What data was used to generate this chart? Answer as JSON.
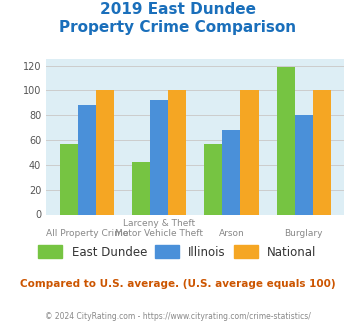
{
  "title_line1": "2019 East Dundee",
  "title_line2": "Property Crime Comparison",
  "title_color": "#1a6fbb",
  "cat_labels_top": [
    "",
    "Larceny & Theft",
    "",
    ""
  ],
  "cat_labels_bottom": [
    "All Property Crime",
    "Motor Vehicle Theft",
    "Arson",
    "Burglary"
  ],
  "east_dundee": [
    57,
    42,
    57,
    119
  ],
  "illinois": [
    88,
    92,
    68,
    80
  ],
  "national": [
    100,
    100,
    100,
    100
  ],
  "bar_colors": {
    "east_dundee": "#76c442",
    "illinois": "#4a90d9",
    "national": "#f5a623"
  },
  "ylim": [
    0,
    125
  ],
  "yticks": [
    0,
    20,
    40,
    60,
    80,
    100,
    120
  ],
  "grid_color": "#cccccc",
  "bg_color": "#ddeef5",
  "note_text": "Compared to U.S. average. (U.S. average equals 100)",
  "note_color": "#cc5500",
  "copyright_text": "© 2024 CityRating.com - https://www.cityrating.com/crime-statistics/",
  "copyright_color": "#888888",
  "legend_labels": [
    "East Dundee",
    "Illinois",
    "National"
  ],
  "bar_width": 0.25
}
